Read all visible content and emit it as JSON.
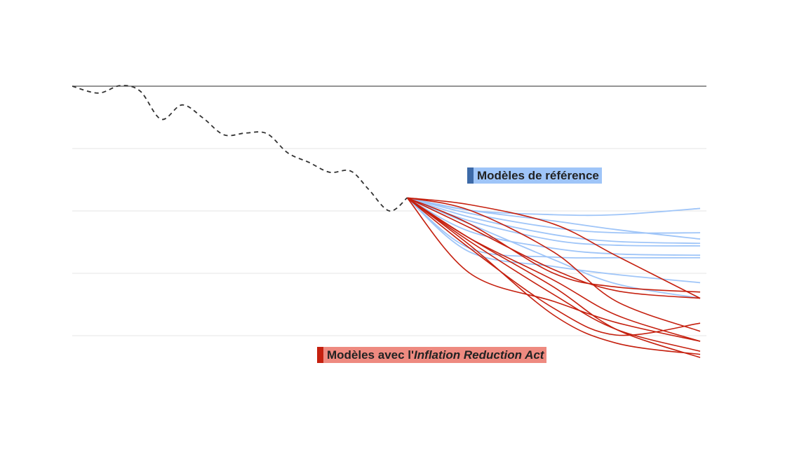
{
  "chart_data": {
    "type": "line",
    "title": "",
    "xlabel": "",
    "ylabel": "",
    "xlim": [
      0,
      30.3
    ],
    "ylim": [
      -4,
      0
    ],
    "gridlines": [
      0,
      -1,
      -2,
      -3,
      -4
    ],
    "grid": true,
    "colors": {
      "historical": "#333333",
      "reference": "#9fc5f8",
      "reference_bar": "#3d6aa8",
      "ira": "#c5200f",
      "ira_label_bg": "#ee8a80",
      "zero_line": "#555555",
      "grid": "#e6e6e6"
    },
    "historical": {
      "style": "dashed",
      "x": [
        0,
        1.25,
        2.3,
        3.25,
        4.25,
        5.25,
        6.25,
        7.25,
        8.3,
        9.3,
        10.3,
        11.3,
        12.3,
        13.3,
        14.15,
        15.15,
        16
      ],
      "y": [
        0,
        -0.11,
        0.01,
        -0.08,
        -0.53,
        -0.3,
        -0.51,
        -0.78,
        -0.75,
        -0.76,
        -1.07,
        -1.22,
        -1.38,
        -1.36,
        -1.65,
        -2.0,
        -1.79
      ]
    },
    "projection_x": [
      16,
      19,
      23,
      26,
      30
    ],
    "reference_series": [
      [
        -1.79,
        -1.99,
        -2.06,
        -2.06,
        -1.96
      ],
      [
        -1.79,
        -2.04,
        -2.27,
        -2.35,
        -2.35
      ],
      [
        -1.79,
        -1.99,
        -2.16,
        -2.3,
        -2.45
      ],
      [
        -1.79,
        -2.1,
        -2.38,
        -2.49,
        -2.52
      ],
      [
        -1.79,
        -2.16,
        -2.47,
        -2.55,
        -2.56
      ],
      [
        -1.79,
        -2.33,
        -2.6,
        -2.69,
        -2.71
      ],
      [
        -1.79,
        -2.6,
        -2.74,
        -2.75,
        -2.75
      ],
      [
        -1.79,
        -2.66,
        -2.89,
        -3.02,
        -3.15
      ],
      [
        -1.79,
        -2.21,
        -2.78,
        -3.17,
        -3.4
      ]
    ],
    "ira_series": [
      [
        -1.79,
        -1.9,
        -2.21,
        -2.72,
        -3.4
      ],
      [
        -1.79,
        -1.99,
        -2.66,
        -3.45,
        -3.93
      ],
      [
        -1.79,
        -2.21,
        -3.0,
        -3.22,
        -3.3
      ],
      [
        -1.79,
        -2.27,
        -2.94,
        -3.28,
        -3.4
      ],
      [
        -1.79,
        -2.44,
        -3.22,
        -3.9,
        -4.35
      ],
      [
        -1.79,
        -2.6,
        -3.56,
        -3.99,
        -3.8
      ],
      [
        -1.79,
        -2.49,
        -3.34,
        -3.9,
        -4.25
      ],
      [
        -1.79,
        -3.0,
        -3.45,
        -3.79,
        -4.09
      ],
      [
        -1.79,
        -2.55,
        -3.67,
        -4.12,
        -4.3
      ],
      [
        -1.79,
        -2.44,
        -3.11,
        -3.67,
        -4.09
      ]
    ],
    "annotations": {
      "reference": "Modèles de référence",
      "ira_prefix": "Modèles avec l'",
      "ira_italic": "Inflation Reduction Act"
    }
  }
}
